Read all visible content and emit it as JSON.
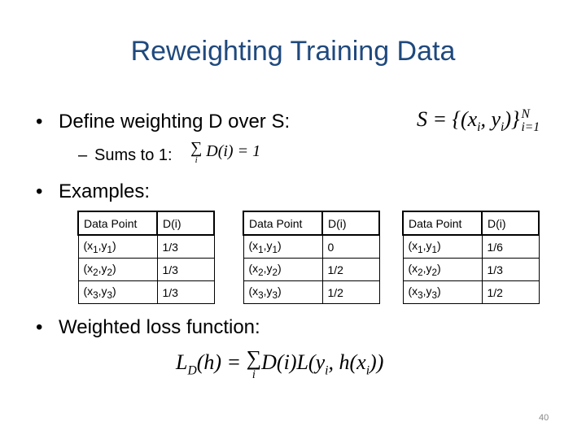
{
  "title": "Reweighting Training Data",
  "bullet_1": "Define weighting D over S:",
  "formula_S": [
    "S = {(x",
    "i",
    ", y",
    "i",
    ")}",
    "N",
    "i=1"
  ],
  "sub_bullet": "Sums to 1:",
  "formula_sum": [
    "∑",
    "i",
    "D(i) = 1"
  ],
  "bullet_2": "Examples:",
  "tables": [
    {
      "header": [
        "Data Point",
        "D(i)"
      ],
      "rows": [
        [
          [
            "(x",
            "1",
            ",y",
            "1",
            ")"
          ],
          "1/3"
        ],
        [
          [
            "(x",
            "2",
            ",y",
            "2",
            ")"
          ],
          "1/3"
        ],
        [
          [
            "(x",
            "3",
            ",y",
            "3",
            ")"
          ],
          "1/3"
        ]
      ]
    },
    {
      "header": [
        "Data Point",
        "D(i)"
      ],
      "rows": [
        [
          [
            "(x",
            "1",
            ",y",
            "1",
            ")"
          ],
          "0"
        ],
        [
          [
            "(x",
            "2",
            ",y",
            "2",
            ")"
          ],
          "1/2"
        ],
        [
          [
            "(x",
            "3",
            ",y",
            "3",
            ")"
          ],
          "1/2"
        ]
      ]
    },
    {
      "header": [
        "Data Point",
        "D(i)"
      ],
      "rows": [
        [
          [
            "(x",
            "1",
            ",y",
            "1",
            ")"
          ],
          "1/6"
        ],
        [
          [
            "(x",
            "2",
            ",y",
            "2",
            ")"
          ],
          "1/3"
        ],
        [
          [
            "(x",
            "3",
            ",y",
            "3",
            ")"
          ],
          "1/2"
        ]
      ]
    }
  ],
  "bullet_3": "Weighted loss function:",
  "formula_loss": [
    "L",
    "D",
    "(h) = ",
    "∑",
    "i",
    "D(i)L(y",
    "i",
    ", h(x",
    "i",
    "))"
  ],
  "page_number": "40"
}
